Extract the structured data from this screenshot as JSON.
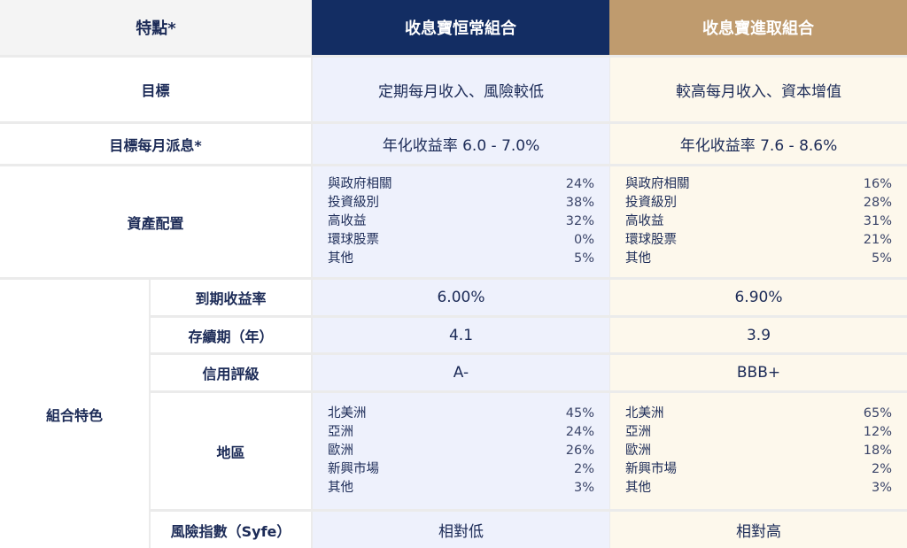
{
  "header": {
    "feature": "特點*",
    "conservative": "收息寶恒常組合",
    "aggressive": "收息寶進取組合"
  },
  "colors": {
    "navy": "#132d63",
    "gold": "#bf9b6e",
    "text": "#1c2b57"
  },
  "rows": {
    "goal": {
      "label": "目標",
      "conservative": "定期每月收入、風險較低",
      "aggressive": "較高每月收入、資本增值"
    },
    "dividend": {
      "label": "目標每月派息*",
      "conservative": "年化收益率 6.0 - 7.0%",
      "aggressive": "年化收益率 7.6 - 8.6%"
    },
    "allocation": {
      "label": "資產配置",
      "conservative": [
        {
          "name": "與政府相關",
          "pct": "24%"
        },
        {
          "name": "投資級別",
          "pct": "38%"
        },
        {
          "name": "高收益",
          "pct": "32%"
        },
        {
          "name": "環球股票",
          "pct": "0%"
        },
        {
          "name": "其他",
          "pct": "5%"
        }
      ],
      "aggressive": [
        {
          "name": "與政府相關",
          "pct": "16%"
        },
        {
          "name": "投資級別",
          "pct": "28%"
        },
        {
          "name": "高收益",
          "pct": "31%"
        },
        {
          "name": "環球股票",
          "pct": "21%"
        },
        {
          "name": "其他",
          "pct": "5%"
        }
      ]
    },
    "features": {
      "label": "組合特色",
      "ytm": {
        "label": "到期收益率",
        "conservative": "6.00%",
        "aggressive": "6.90%"
      },
      "duration": {
        "label": "存續期（年）",
        "conservative": "4.1",
        "aggressive": "3.9"
      },
      "rating": {
        "label": "信用評級",
        "conservative": "A-",
        "aggressive": "BBB+"
      },
      "region": {
        "label": "地區",
        "conservative": [
          {
            "name": "北美洲",
            "pct": "45%"
          },
          {
            "name": "亞洲",
            "pct": "24%"
          },
          {
            "name": "歐洲",
            "pct": "26%"
          },
          {
            "name": "新興市場",
            "pct": "2%"
          },
          {
            "name": "其他",
            "pct": "3%"
          }
        ],
        "aggressive": [
          {
            "name": "北美洲",
            "pct": "65%"
          },
          {
            "name": "亞洲",
            "pct": "12%"
          },
          {
            "name": "歐洲",
            "pct": "18%"
          },
          {
            "name": "新興市場",
            "pct": "2%"
          },
          {
            "name": "其他",
            "pct": "3%"
          }
        ]
      },
      "risk": {
        "label": "風險指數（Syfe）",
        "conservative": "相對低",
        "aggressive": "相對高"
      }
    }
  }
}
